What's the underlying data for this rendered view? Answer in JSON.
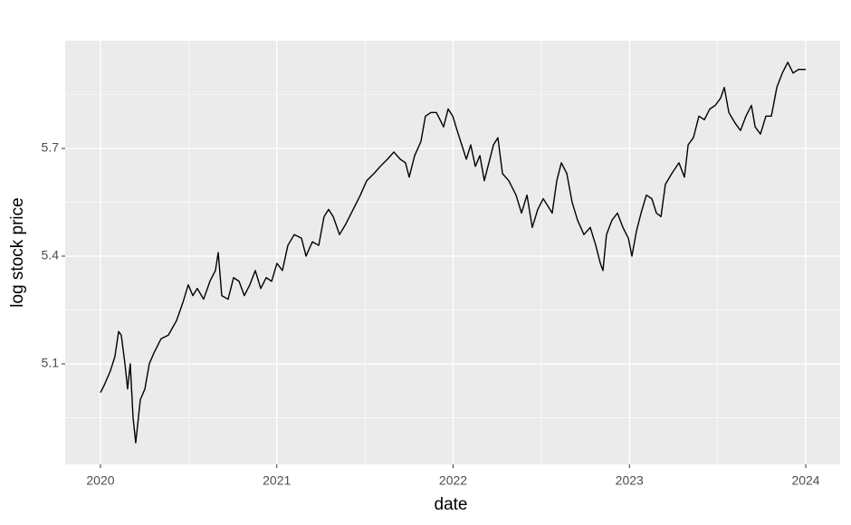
{
  "chart_data": {
    "type": "line",
    "x_label": "date",
    "y_label": "log stock price",
    "x": [
      2020.0,
      2020.021,
      2020.056,
      2020.082,
      2020.103,
      2020.118,
      2020.139,
      2020.154,
      2020.169,
      2020.185,
      2020.2,
      2020.211,
      2020.226,
      2020.252,
      2020.277,
      2020.303,
      2020.344,
      2020.385,
      2020.431,
      2020.467,
      2020.498,
      2020.524,
      2020.549,
      2020.585,
      2020.621,
      2020.652,
      2020.668,
      2020.688,
      2020.724,
      2020.755,
      2020.786,
      2020.816,
      2020.847,
      2020.878,
      2020.909,
      2020.94,
      2020.971,
      2021.001,
      2021.032,
      2021.063,
      2021.099,
      2021.14,
      2021.166,
      2021.202,
      2021.238,
      2021.268,
      2021.294,
      2021.32,
      2021.356,
      2021.392,
      2021.433,
      2021.474,
      2021.51,
      2021.551,
      2021.587,
      2021.628,
      2021.664,
      2021.7,
      2021.73,
      2021.751,
      2021.782,
      2021.818,
      2021.843,
      2021.874,
      2021.905,
      2021.926,
      2021.946,
      2021.972,
      2021.998,
      2022.023,
      2022.049,
      2022.075,
      2022.1,
      2022.126,
      2022.152,
      2022.177,
      2022.203,
      2022.229,
      2022.254,
      2022.28,
      2022.316,
      2022.357,
      2022.388,
      2022.419,
      2022.449,
      2022.48,
      2022.511,
      2022.537,
      2022.562,
      2022.588,
      2022.614,
      2022.645,
      2022.675,
      2022.706,
      2022.742,
      2022.778,
      2022.809,
      2022.835,
      2022.85,
      2022.87,
      2022.901,
      2022.932,
      2022.963,
      2022.994,
      2023.014,
      2023.04,
      2023.066,
      2023.096,
      2023.127,
      2023.153,
      2023.179,
      2023.204,
      2023.24,
      2023.281,
      2023.312,
      2023.333,
      2023.363,
      2023.394,
      2023.425,
      2023.456,
      2023.487,
      2023.517,
      2023.538,
      2023.564,
      2023.6,
      2023.63,
      2023.661,
      2023.692,
      2023.713,
      2023.743,
      2023.774,
      2023.805,
      2023.836,
      2023.867,
      2023.898,
      2023.928,
      2023.959,
      2024.0
    ],
    "values": [
      5.02,
      5.04,
      5.08,
      5.12,
      5.19,
      5.18,
      5.1,
      5.03,
      5.1,
      4.95,
      4.88,
      4.93,
      5.0,
      5.03,
      5.1,
      5.13,
      5.17,
      5.18,
      5.22,
      5.27,
      5.32,
      5.29,
      5.31,
      5.28,
      5.33,
      5.36,
      5.41,
      5.29,
      5.28,
      5.34,
      5.33,
      5.29,
      5.32,
      5.36,
      5.31,
      5.34,
      5.33,
      5.38,
      5.36,
      5.43,
      5.46,
      5.45,
      5.4,
      5.44,
      5.43,
      5.51,
      5.53,
      5.51,
      5.46,
      5.49,
      5.53,
      5.57,
      5.61,
      5.63,
      5.65,
      5.67,
      5.69,
      5.67,
      5.66,
      5.62,
      5.68,
      5.72,
      5.79,
      5.8,
      5.8,
      5.78,
      5.76,
      5.81,
      5.79,
      5.75,
      5.71,
      5.67,
      5.71,
      5.65,
      5.68,
      5.61,
      5.66,
      5.71,
      5.73,
      5.63,
      5.61,
      5.57,
      5.52,
      5.57,
      5.48,
      5.53,
      5.56,
      5.54,
      5.52,
      5.61,
      5.66,
      5.63,
      5.55,
      5.5,
      5.46,
      5.48,
      5.43,
      5.38,
      5.36,
      5.46,
      5.5,
      5.52,
      5.48,
      5.45,
      5.4,
      5.47,
      5.52,
      5.57,
      5.56,
      5.52,
      5.51,
      5.6,
      5.63,
      5.66,
      5.62,
      5.71,
      5.73,
      5.79,
      5.78,
      5.81,
      5.82,
      5.84,
      5.87,
      5.8,
      5.77,
      5.75,
      5.79,
      5.82,
      5.76,
      5.74,
      5.79,
      5.79,
      5.87,
      5.91,
      5.94,
      5.91,
      5.92,
      5.92
    ],
    "color": "#000000",
    "xlim": [
      2019.8,
      2024.195
    ],
    "xticks": [
      2020,
      2021,
      2022,
      2023,
      2024
    ],
    "minor_xticks": [
      2020.5,
      2021.5,
      2022.5,
      2023.5
    ],
    "ylim": [
      4.82,
      6.0
    ],
    "yticks": [
      5.1,
      5.4,
      5.7
    ],
    "minor_yticks": [
      4.95,
      5.25,
      5.55,
      5.85
    ],
    "grid": true
  }
}
